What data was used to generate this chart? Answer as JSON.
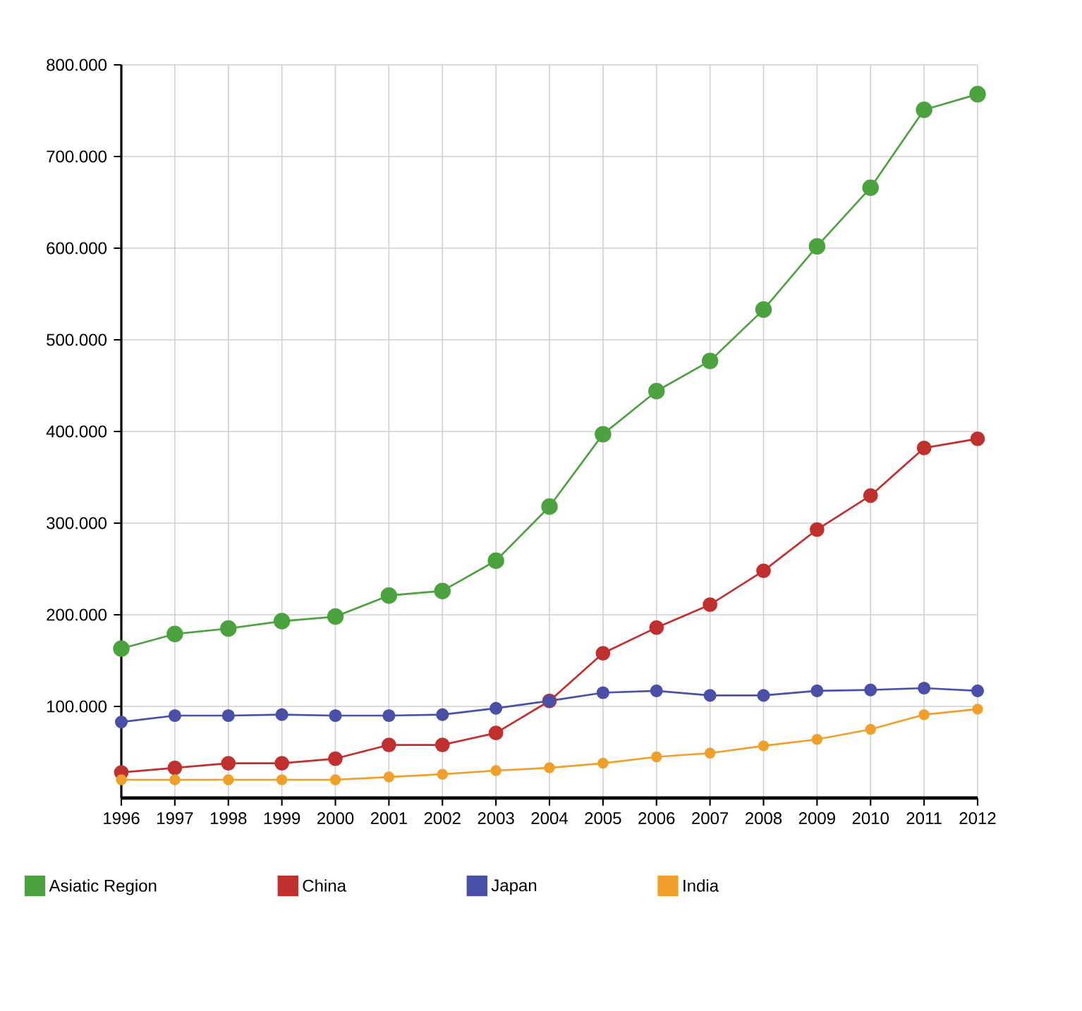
{
  "chart_data": {
    "type": "line",
    "x": [
      1996,
      1997,
      1998,
      1999,
      2000,
      2001,
      2002,
      2003,
      2004,
      2005,
      2006,
      2007,
      2008,
      2009,
      2010,
      2011,
      2012
    ],
    "series": [
      {
        "name": "Asiatic Region",
        "color": "#4ca23f",
        "values": [
          163000,
          179000,
          185000,
          193000,
          198000,
          221000,
          226000,
          259000,
          318000,
          397000,
          444000,
          477000,
          533000,
          602000,
          666000,
          751000,
          768000
        ]
      },
      {
        "name": "China",
        "color": "#c0302e",
        "values": [
          28000,
          33000,
          38000,
          38000,
          43000,
          58000,
          58000,
          71000,
          106000,
          158000,
          186000,
          211000,
          248000,
          293000,
          330000,
          382000,
          392000
        ]
      },
      {
        "name": "Japan",
        "color": "#4a50a8",
        "values": [
          83000,
          90000,
          90000,
          91000,
          90000,
          90000,
          91000,
          98000,
          106000,
          115000,
          117000,
          112000,
          112000,
          117000,
          118000,
          120000,
          117000
        ]
      },
      {
        "name": "India",
        "color": "#f0a02a",
        "values": [
          20000,
          20000,
          20000,
          20000,
          20000,
          23000,
          26000,
          30000,
          33000,
          38000,
          45000,
          49000,
          57000,
          64000,
          75000,
          91000,
          97000
        ]
      }
    ],
    "xlim": [
      1996,
      2012
    ],
    "xticks": [
      1996,
      1997,
      1998,
      1999,
      2000,
      2001,
      2002,
      2003,
      2004,
      2005,
      2006,
      2007,
      2008,
      2009,
      2010,
      2011,
      2012
    ],
    "ylim": [
      0,
      800000
    ],
    "yticks": [
      {
        "value": 100000,
        "label": "100.000"
      },
      {
        "value": 200000,
        "label": "200.000"
      },
      {
        "value": 300000,
        "label": "300.000"
      },
      {
        "value": 400000,
        "label": "400.000"
      },
      {
        "value": 500000,
        "label": "500.000"
      },
      {
        "value": 600000,
        "label": "600.000"
      },
      {
        "value": 700000,
        "label": "700.000"
      },
      {
        "value": 800000,
        "label": "800.000"
      }
    ],
    "grid": true,
    "legend": "bottom",
    "marker": "circle",
    "line_style": "solid"
  }
}
